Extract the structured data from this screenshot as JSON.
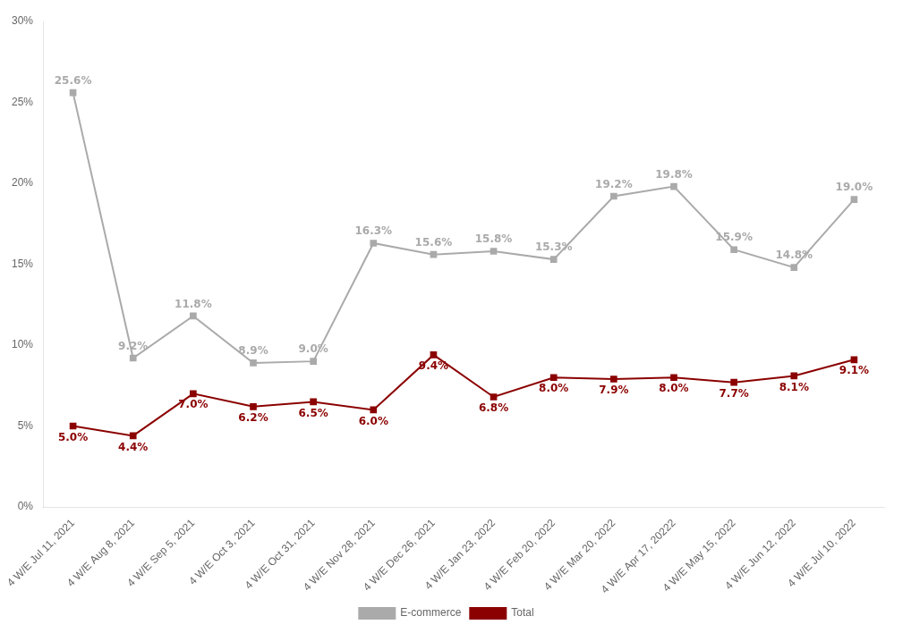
{
  "chart_data": {
    "type": "line",
    "categories": [
      "4 W/E Jul 11, 2021",
      "4 W/E Aug 8, 2021",
      "4 W/E Sep 5, 2021",
      "4 W/E Oct 3, 2021",
      "4 W/E Oct 31, 2021",
      "4 W/E Nov 28, 2021",
      "4 W/E Dec 26, 2021",
      "4 W/E Jan 23, 2022",
      "4 W/E Feb 20, 2022",
      "4 W/E Mar 20, 2022",
      "4 W/E Apr 17, 20222",
      "4 W/E May 15, 2022",
      "4 W/E Jun 12, 2022",
      "4 W/E Jul 10, 2022"
    ],
    "series": [
      {
        "name": "E-commerce",
        "color": "#aaaaaa",
        "marker": "square",
        "line_style": "solid",
        "values": [
          25.6,
          9.2,
          11.8,
          8.9,
          9.0,
          16.3,
          15.6,
          15.8,
          15.3,
          19.2,
          19.8,
          15.9,
          14.8,
          19.0
        ],
        "value_labels": [
          "25.6%",
          "9.2%",
          "11.8%",
          "8.9%",
          "9.0%",
          "16.3%",
          "15.6%",
          "15.8%",
          "15.3%",
          "19.2%",
          "19.8%",
          "15.9%",
          "14.8%",
          "19.0%"
        ]
      },
      {
        "name": "Total",
        "color": "#8b0000",
        "marker": "square",
        "line_style": "solid",
        "values": [
          5.0,
          4.4,
          7.0,
          6.2,
          6.5,
          6.0,
          9.4,
          6.8,
          8.0,
          7.9,
          8.0,
          7.7,
          8.1,
          9.1
        ],
        "value_labels": [
          "5.0%",
          "4.4%",
          "7.0%",
          "6.2%",
          "6.5%",
          "6.0%",
          "9.4%",
          "6.8%",
          "8.0%",
          "7.9%",
          "8.0%",
          "7.7%",
          "8.1%",
          "9.1%"
        ]
      }
    ],
    "ylim": [
      0,
      30
    ],
    "yticks": [
      {
        "value": 0,
        "label": "0%"
      },
      {
        "value": 5,
        "label": "5%"
      },
      {
        "value": 10,
        "label": "10%"
      },
      {
        "value": 15,
        "label": "15%"
      },
      {
        "value": 20,
        "label": "20%"
      },
      {
        "value": 25,
        "label": "25%"
      },
      {
        "value": 30,
        "label": "30%"
      }
    ],
    "grid": false,
    "legend": "bottom",
    "data_labels": true
  }
}
